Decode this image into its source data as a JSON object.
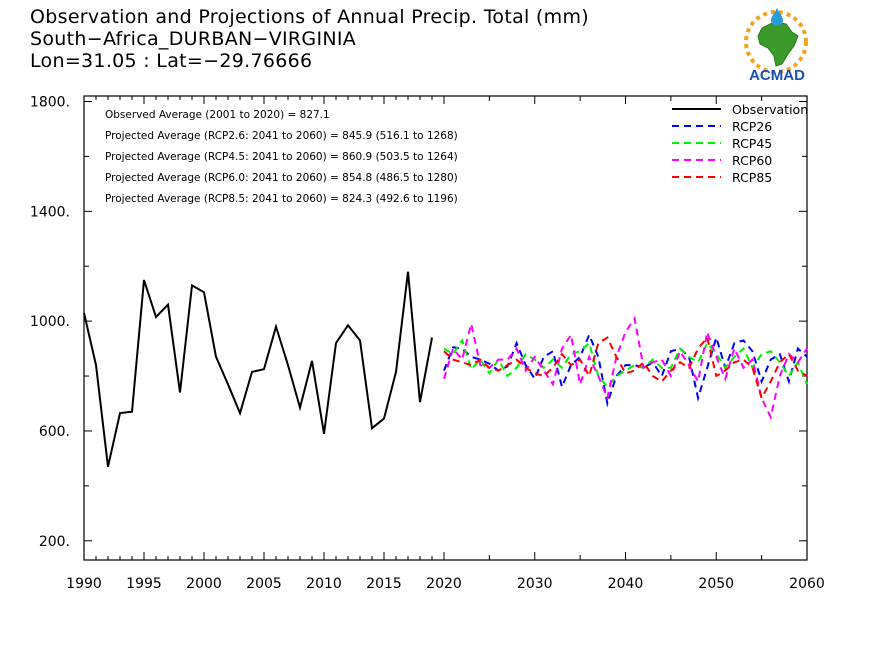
{
  "header": {
    "title": "Observation and Projections of Annual Precip. Total (mm)",
    "location": "South−Africa_DURBAN−VIRGINIA",
    "coords": "Lon=31.05 : Lat=−29.76666"
  },
  "logo": {
    "text": "ACMAD",
    "icon": "africa-map-sun-logo"
  },
  "chart_data": {
    "type": "line",
    "xlim": [
      1990,
      2060
    ],
    "ylim": [
      130,
      1820
    ],
    "yticks": [
      200,
      600,
      1000,
      1400,
      1800
    ],
    "ytick_labels": [
      "200.",
      "600.",
      "1000.",
      "1400.",
      "1800."
    ],
    "xticks_obs": [
      1990,
      1995,
      2000,
      2005,
      2010,
      2015,
      2020
    ],
    "xticks_proj": [
      2030,
      2040,
      2050,
      2060
    ],
    "annotations": [
      "Observed Average (2001 to 2020) = 827.1",
      "Projected Average (RCP2.6: 2041 to 2060) = 845.9 (516.1 to 1268)",
      "Projected Average (RCP4.5: 2041 to 2060) = 860.9 (503.5 to 1264)",
      "Projected Average (RCP6.0: 2041 to 2060) = 854.8 (486.5 to 1280)",
      "Projected Average (RCP8.5: 2041 to 2060) = 824.3 (492.6 to 1196)"
    ],
    "legend_position": "top-right",
    "observation": {
      "name": "Observation",
      "color": "#000000",
      "x": [
        1990,
        1991,
        1992,
        1993,
        1994,
        1995,
        1996,
        1997,
        1998,
        1999,
        2000,
        2001,
        2002,
        2003,
        2004,
        2005,
        2006,
        2007,
        2008,
        2009,
        2010,
        2011,
        2012,
        2013,
        2014,
        2015,
        2016,
        2017,
        2018,
        2019,
        2020
      ],
      "y": [
        1030,
        840,
        470,
        665,
        670,
        1150,
        1015,
        1060,
        740,
        1130,
        1105,
        870,
        770,
        665,
        815,
        825,
        980,
        840,
        685,
        855,
        590,
        920,
        985,
        930,
        610,
        645,
        815,
        1180,
        705,
        940,
        null
      ]
    },
    "series": [
      {
        "name": "RCP26",
        "color": "#0000ff",
        "x_start": 2020,
        "values": [
          820,
          905,
          900,
          870,
          860,
          845,
          820,
          835,
          920,
          840,
          790,
          870,
          890,
          760,
          840,
          870,
          950,
          870,
          700,
          800,
          840,
          840,
          830,
          850,
          800,
          890,
          900,
          870,
          720,
          830,
          940,
          830,
          920,
          930,
          890,
          780,
          860,
          880,
          780,
          900,
          870
        ]
      },
      {
        "name": "RCP45",
        "color": "#00ee00",
        "x_start": 2020,
        "values": [
          900,
          880,
          930,
          825,
          860,
          810,
          860,
          800,
          830,
          880,
          860,
          830,
          860,
          830,
          880,
          890,
          920,
          800,
          760,
          800,
          820,
          840,
          830,
          860,
          830,
          830,
          900,
          870,
          850,
          920,
          880,
          830,
          870,
          900,
          830,
          880,
          890,
          850,
          800,
          850,
          770
        ]
      },
      {
        "name": "RCP60",
        "color": "#ff00ff",
        "x_start": 2020,
        "values": [
          790,
          900,
          860,
          990,
          840,
          830,
          860,
          860,
          900,
          820,
          870,
          820,
          770,
          900,
          950,
          770,
          870,
          800,
          720,
          870,
          960,
          1010,
          830,
          850,
          860,
          800,
          890,
          840,
          780,
          960,
          870,
          790,
          900,
          830,
          860,
          720,
          650,
          800,
          880,
          850,
          900
        ]
      },
      {
        "name": "RCP85",
        "color": "#ff0000",
        "x_start": 2020,
        "values": [
          890,
          860,
          850,
          840,
          860,
          830,
          820,
          840,
          860,
          830,
          810,
          800,
          830,
          880,
          840,
          860,
          800,
          920,
          940,
          870,
          810,
          820,
          850,
          800,
          780,
          820,
          850,
          830,
          900,
          940,
          800,
          820,
          850,
          860,
          830,
          720,
          780,
          850,
          880,
          820,
          800
        ]
      }
    ]
  }
}
